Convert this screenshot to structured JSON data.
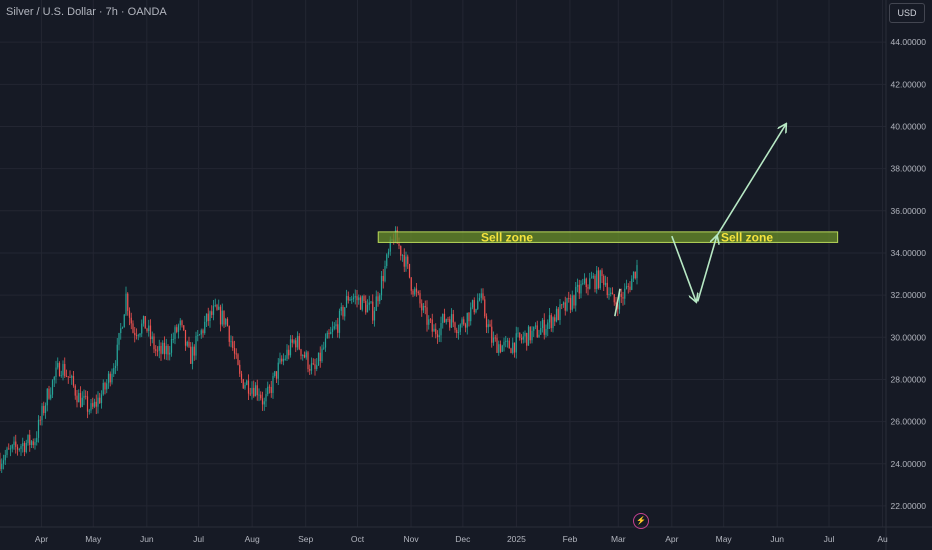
{
  "header": {
    "title": "Silver / U.S. Dollar · 7h · OANDA",
    "currency_button": "USD"
  },
  "marker": {
    "icon": "lightning-icon",
    "glyph": "⚡"
  },
  "colors": {
    "up": "#26a69a",
    "down": "#ef5350",
    "background": "#161a25",
    "zone_fill": "#6a8f2a",
    "zone_border": "#b9d95a",
    "arrow": "#b7e8c4",
    "zone_text": "#f5e33c"
  },
  "chart_data": {
    "type": "candlestick",
    "ylim": [
      21,
      46
    ],
    "y_ticks": [
      22,
      24,
      26,
      28,
      30,
      32,
      34,
      36,
      38,
      40,
      42,
      44
    ],
    "y_tick_labels": [
      "22.00000",
      "24.00000",
      "26.00000",
      "28.00000",
      "30.00000",
      "32.00000",
      "34.00000",
      "36.00000",
      "38.00000",
      "40.00000",
      "42.00000",
      "44.00000"
    ],
    "x_range": [
      "2024-03-08",
      "2025-08-03"
    ],
    "x_ticks": [
      {
        "date": "2024-04-01",
        "label": "Apr"
      },
      {
        "date": "2024-05-01",
        "label": "May"
      },
      {
        "date": "2024-06-01",
        "label": "Jun"
      },
      {
        "date": "2024-07-01",
        "label": "Jul"
      },
      {
        "date": "2024-08-01",
        "label": "Aug"
      },
      {
        "date": "2024-09-01",
        "label": "Sep"
      },
      {
        "date": "2024-10-01",
        "label": "Oct"
      },
      {
        "date": "2024-11-01",
        "label": "Nov"
      },
      {
        "date": "2024-12-01",
        "label": "Dec"
      },
      {
        "date": "2025-01-01",
        "label": "2025"
      },
      {
        "date": "2025-02-01",
        "label": "Feb"
      },
      {
        "date": "2025-03-01",
        "label": "Mar"
      },
      {
        "date": "2025-04-01",
        "label": "Apr"
      },
      {
        "date": "2025-05-01",
        "label": "May"
      },
      {
        "date": "2025-06-01",
        "label": "Jun"
      },
      {
        "date": "2025-07-01",
        "label": "Jul"
      },
      {
        "date": "2025-08-01",
        "label": "Au"
      }
    ],
    "price_path": [
      [
        "2024-03-08",
        24.2
      ],
      [
        "2024-03-20",
        24.9
      ],
      [
        "2024-03-28",
        25.1
      ],
      [
        "2024-04-05",
        27.4
      ],
      [
        "2024-04-12",
        28.7
      ],
      [
        "2024-04-16",
        28.2
      ],
      [
        "2024-04-23",
        27.1
      ],
      [
        "2024-04-30",
        26.5
      ],
      [
        "2024-05-08",
        27.6
      ],
      [
        "2024-05-15",
        29.3
      ],
      [
        "2024-05-20",
        32.0
      ],
      [
        "2024-05-24",
        30.3
      ],
      [
        "2024-05-31",
        30.6
      ],
      [
        "2024-06-07",
        29.2
      ],
      [
        "2024-06-13",
        29.4
      ],
      [
        "2024-06-20",
        30.6
      ],
      [
        "2024-06-26",
        29.0
      ],
      [
        "2024-07-05",
        30.7
      ],
      [
        "2024-07-10",
        31.2
      ],
      [
        "2024-07-17",
        30.8
      ],
      [
        "2024-07-25",
        28.0
      ],
      [
        "2024-08-05",
        27.5
      ],
      [
        "2024-08-08",
        26.8
      ],
      [
        "2024-08-16",
        28.5
      ],
      [
        "2024-08-26",
        29.9
      ],
      [
        "2024-09-06",
        28.3
      ],
      [
        "2024-09-12",
        29.6
      ],
      [
        "2024-09-20",
        30.7
      ],
      [
        "2024-09-26",
        32.0
      ],
      [
        "2024-10-03",
        31.7
      ],
      [
        "2024-10-10",
        31.2
      ],
      [
        "2024-10-18",
        33.6
      ],
      [
        "2024-10-22",
        34.8
      ],
      [
        "2024-10-28",
        33.8
      ],
      [
        "2024-11-01",
        32.6
      ],
      [
        "2024-11-08",
        31.2
      ],
      [
        "2024-11-14",
        30.2
      ],
      [
        "2024-11-22",
        31.0
      ],
      [
        "2024-11-29",
        30.5
      ],
      [
        "2024-12-06",
        31.3
      ],
      [
        "2024-12-11",
        31.9
      ],
      [
        "2024-12-18",
        29.8
      ],
      [
        "2024-12-26",
        29.5
      ],
      [
        "2025-01-06",
        30.0
      ],
      [
        "2025-01-14",
        30.3
      ],
      [
        "2025-01-22",
        30.9
      ],
      [
        "2025-01-31",
        31.5
      ],
      [
        "2025-02-07",
        32.3
      ],
      [
        "2025-02-14",
        32.7
      ],
      [
        "2025-02-21",
        32.8
      ],
      [
        "2025-02-26",
        31.6
      ],
      [
        "2025-03-03",
        31.9
      ],
      [
        "2025-03-07",
        32.4
      ],
      [
        "2025-03-12",
        33.4
      ]
    ],
    "annotations": {
      "sell_zones": [
        {
          "label": "Sell zone",
          "from": "2024-10-13",
          "to": "2025-07-06",
          "y_low": 34.5,
          "y_high": 35.0
        }
      ],
      "arrows": [
        {
          "from": [
            "2025-03-02",
            32.3
          ],
          "to": [
            "2025-02-27",
            31.0
          ],
          "head": false
        },
        {
          "from": [
            "2025-04-01",
            34.8
          ],
          "to": [
            "2025-04-15",
            31.7
          ],
          "head": true
        },
        {
          "from": [
            "2025-04-16",
            31.7
          ],
          "to": [
            "2025-04-27",
            34.8
          ],
          "head": true
        },
        {
          "from": [
            "2025-04-27",
            34.8
          ],
          "to": [
            "2025-06-06",
            40.1
          ],
          "head": true
        }
      ]
    }
  }
}
